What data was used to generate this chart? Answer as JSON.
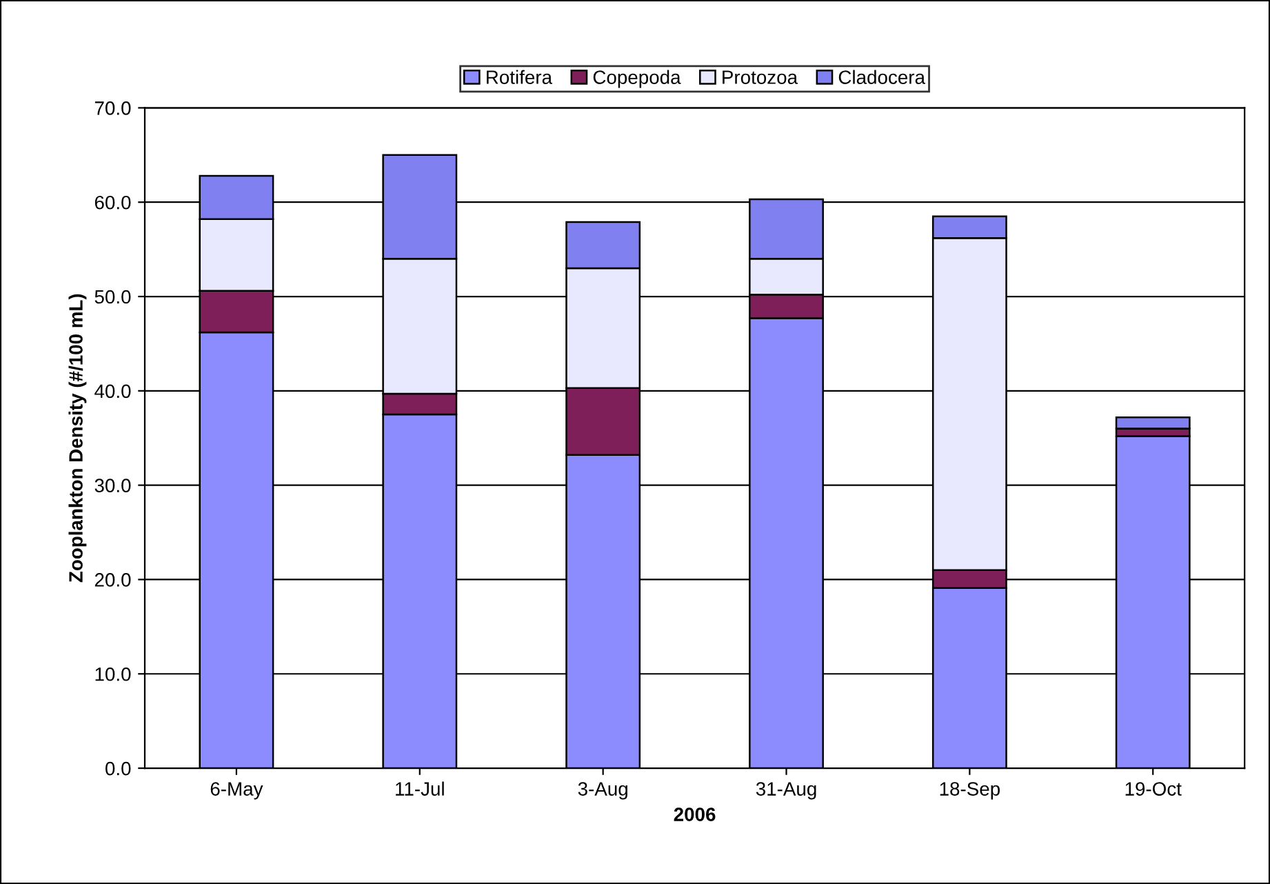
{
  "chart_data": {
    "type": "bar",
    "stacked": true,
    "xlabel": "2006",
    "ylabel": "Zooplankton Density (#/100 mL)",
    "categories": [
      "6-May",
      "11-Jul",
      "3-Aug",
      "31-Aug",
      "18-Sep",
      "19-Oct"
    ],
    "series": [
      {
        "name": "Rotifera",
        "color": "#8c8cff",
        "values": [
          46.2,
          37.5,
          33.2,
          47.7,
          19.1,
          35.2
        ]
      },
      {
        "name": "Copepoda",
        "color": "#7f1f5a",
        "values": [
          4.4,
          2.2,
          7.1,
          2.5,
          1.9,
          0.8
        ]
      },
      {
        "name": "Protozoa",
        "color": "#e8e8ff",
        "values": [
          7.6,
          14.3,
          12.7,
          3.8,
          35.2,
          0
        ]
      },
      {
        "name": "Cladocera",
        "color": "#8080f0",
        "values": [
          4.6,
          11.0,
          4.9,
          6.3,
          2.3,
          1.2
        ]
      }
    ],
    "ylim": [
      0,
      70
    ],
    "yticks": [
      {
        "value": 0,
        "label": "0.0"
      },
      {
        "value": 10,
        "label": "10.0"
      },
      {
        "value": 20,
        "label": "20.0"
      },
      {
        "value": 30,
        "label": "30.0"
      },
      {
        "value": 40,
        "label": "40.0"
      },
      {
        "value": 50,
        "label": "50.0"
      },
      {
        "value": 60,
        "label": "60.0"
      },
      {
        "value": 70,
        "label": "70.0"
      }
    ],
    "grid": "y",
    "legend": "top"
  }
}
